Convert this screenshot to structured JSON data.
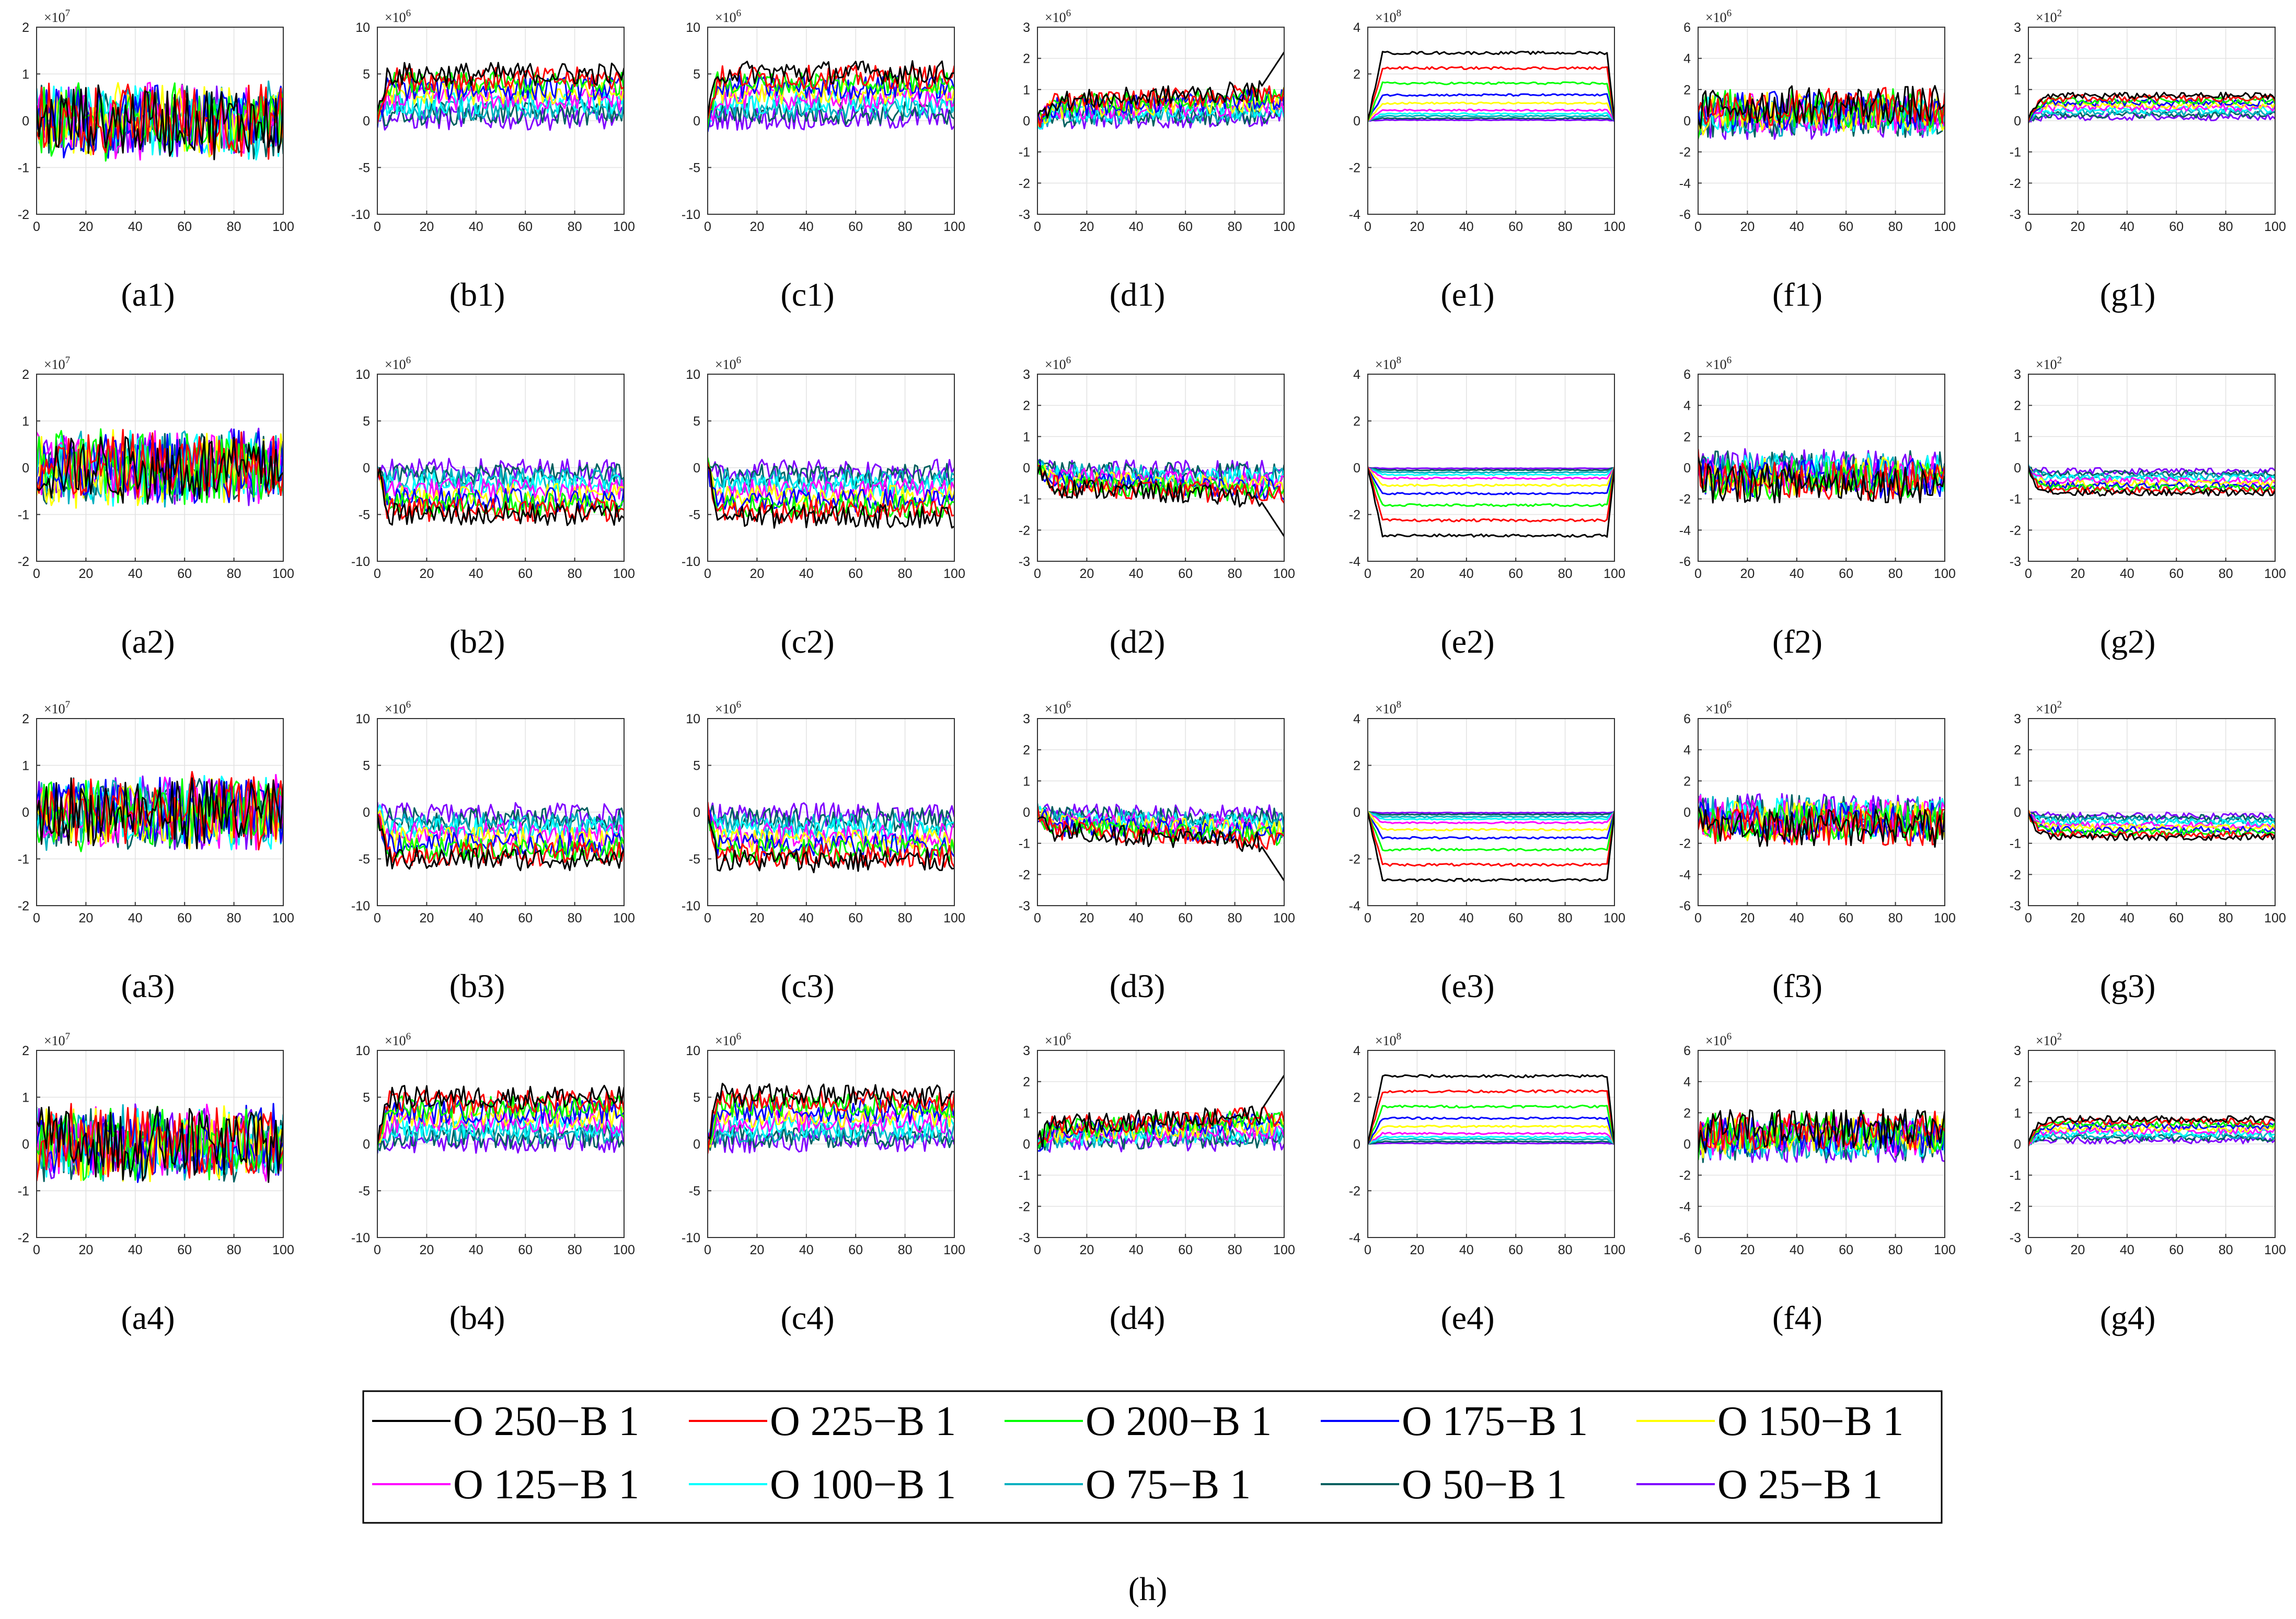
{
  "figure": {
    "legend_caption": "(h)"
  },
  "colors": {
    "O 250-B 1": "#000000",
    "O 225-B 1": "#ff0000",
    "O 200-B 1": "#00ff00",
    "O 175-B 1": "#0000ff",
    "O 150-B 1": "#ffff00",
    "O 125-B 1": "#ff00ff",
    "O 100-B 1": "#00ffff",
    "O 75-B 1": "#00b0c0",
    "O 50-B 1": "#006060",
    "O 25-B 1": "#7f00ff"
  },
  "legend": {
    "entries": [
      "O 250−B 1",
      "O 225−B 1",
      "O 200−B 1",
      "O 175−B 1",
      "O 150−B 1",
      "O 125−B 1",
      "O 100−B 1",
      "O 75−B 1",
      "O 50−B 1",
      "O 25−B 1"
    ],
    "color_keys": [
      "O 250-B 1",
      "O 225-B 1",
      "O 200-B 1",
      "O 175-B 1",
      "O 150-B 1",
      "O 125-B 1",
      "O 100-B 1",
      "O 75-B 1",
      "O 50-B 1",
      "O 25-B 1"
    ]
  },
  "chart_data": {
    "type": "line",
    "description_rows": 4,
    "description_cols": 7,
    "series_names": [
      "O 250−B 1",
      "O 225−B 1",
      "O 200−B 1",
      "O 175−B 1",
      "O 150−B 1",
      "O 125−B 1",
      "O 100−B 1",
      "O 75−B 1",
      "O 50−B 1",
      "O 25−B 1"
    ],
    "x_range": [
      0,
      100
    ],
    "x_ticks": [
      0,
      20,
      40,
      60,
      80,
      100
    ],
    "columns": [
      {
        "letter": "a",
        "exponent_label": "×10",
        "exponent": "7",
        "ylim": [
          -2,
          2
        ],
        "y_ticks": [
          -2,
          -1,
          0,
          1,
          2
        ],
        "pattern": "noise_big",
        "noise_scale": 0.45
      },
      {
        "letter": "b",
        "exponent_label": "×10",
        "exponent": "6",
        "ylim": [
          -10,
          10
        ],
        "y_ticks": [
          -10,
          -5,
          0,
          5,
          10
        ],
        "pattern": "offset_levels",
        "max_level": 5.0,
        "noise_scale": 0.9
      },
      {
        "letter": "c",
        "exponent_label": "×10",
        "exponent": "6",
        "ylim": [
          -10,
          10
        ],
        "y_ticks": [
          -10,
          -5,
          0,
          5,
          10
        ],
        "pattern": "offset_levels",
        "max_level": 5.2,
        "noise_scale": 0.9
      },
      {
        "letter": "d",
        "exponent_label": "×10",
        "exponent": "6",
        "ylim": [
          -3,
          3
        ],
        "y_ticks": [
          -3,
          -2,
          -1,
          0,
          1,
          2,
          3
        ],
        "pattern": "ramp",
        "max_level": 1.0,
        "noise_scale": 0.25
      },
      {
        "letter": "e",
        "exponent_label": "×10",
        "exponent": "8",
        "ylim": [
          -4,
          4
        ],
        "y_ticks": [
          -4,
          -2,
          0,
          2,
          4
        ],
        "pattern": "plateau",
        "levels": [
          2.9,
          2.25,
          1.6,
          1.1,
          0.75,
          0.45,
          0.3,
          0.2,
          0.1,
          0.03
        ],
        "noise_scale": 0.06
      },
      {
        "letter": "f",
        "exponent_label": "×10",
        "exponent": "6",
        "ylim": [
          -6,
          6
        ],
        "y_ticks": [
          -6,
          -4,
          -2,
          0,
          2,
          4,
          6
        ],
        "pattern": "offset_levels",
        "max_level": 1.0,
        "noise_scale": 0.9
      },
      {
        "letter": "g",
        "exponent_label": "×10",
        "exponent": "2",
        "ylim": [
          -3,
          3
        ],
        "y_ticks": [
          -3,
          -2,
          -1,
          0,
          1,
          2,
          3
        ],
        "pattern": "plateau_soft",
        "max_level": 0.8,
        "noise_scale": 0.09
      }
    ],
    "rows": [
      {
        "index": 1,
        "sign": 1,
        "captions": [
          "(a1)",
          "(b1)",
          "(c1)",
          "(d1)",
          "(e1)",
          "(f1)",
          "(g1)"
        ]
      },
      {
        "index": 2,
        "sign": -1,
        "captions": [
          "(a2)",
          "(b2)",
          "(c2)",
          "(d2)",
          "(e2)",
          "(f2)",
          "(g2)"
        ]
      },
      {
        "index": 3,
        "sign": -1,
        "captions": [
          "(a3)",
          "(b3)",
          "(c3)",
          "(d3)",
          "(e3)",
          "(f3)",
          "(g3)"
        ]
      },
      {
        "index": 4,
        "sign": 1,
        "captions": [
          "(a4)",
          "(b4)",
          "(c4)",
          "(d4)",
          "(e4)",
          "(f4)",
          "(g4)"
        ]
      }
    ]
  }
}
